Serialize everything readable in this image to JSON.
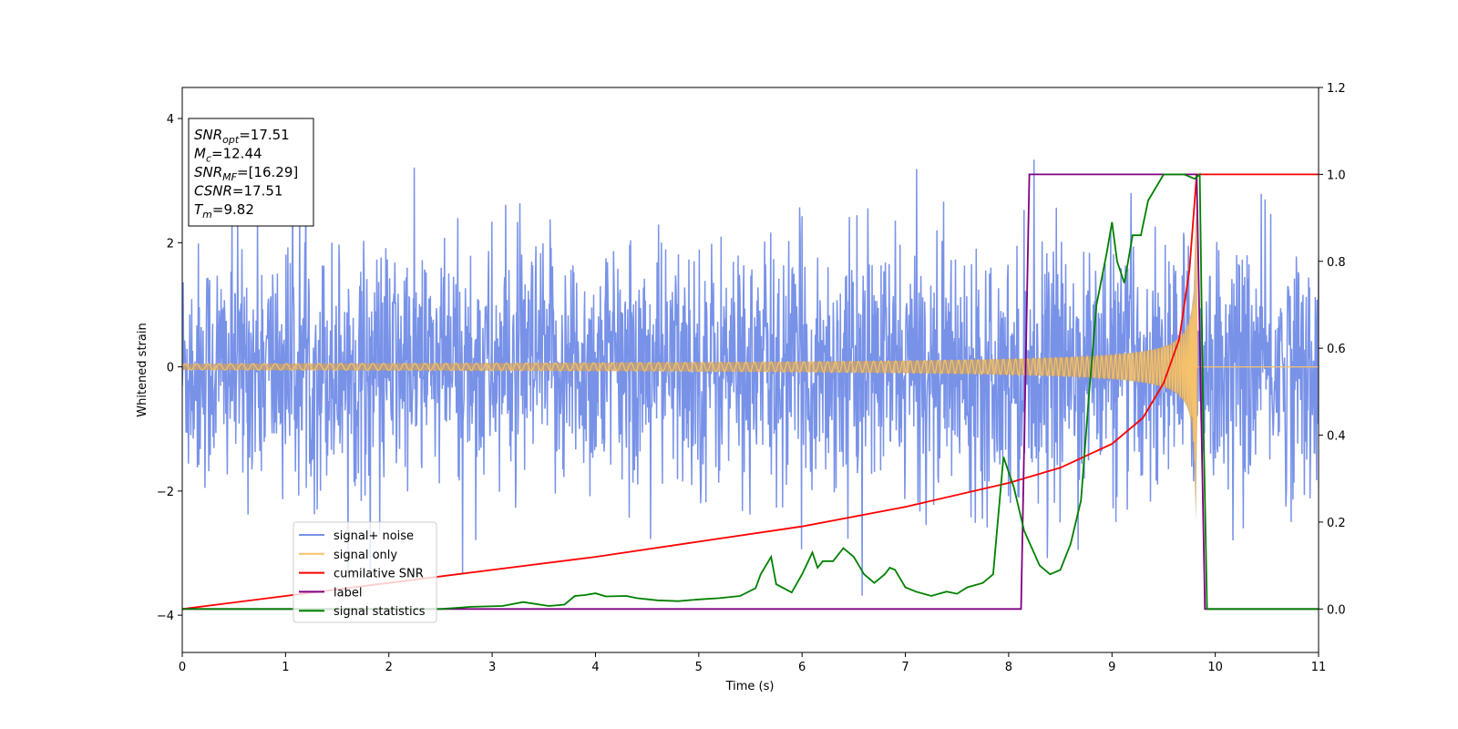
{
  "chart_data": {
    "type": "line",
    "xlabel": "Time (s)",
    "ylabel": "Whitened strain",
    "xlim": [
      0,
      11
    ],
    "ylim": [
      -4.6,
      4.5
    ],
    "y2lim": [
      -0.1,
      1.2
    ],
    "x_ticks": [
      "0",
      "1",
      "2",
      "3",
      "4",
      "5",
      "6",
      "7",
      "8",
      "9",
      "10",
      "11"
    ],
    "y_ticks": [
      "4",
      "2",
      "0",
      "−2",
      "−4"
    ],
    "y2_ticks": [
      "1.2",
      "1.0",
      "0.8",
      "0.6",
      "0.4",
      "0.2",
      "0.0"
    ],
    "info_box": [
      {
        "main": "SNR",
        "sub": "opt",
        "rest": "=17.51"
      },
      {
        "main": "M",
        "sub": "c",
        "rest": "=12.44"
      },
      {
        "main": "SNR",
        "sub": "MF",
        "rest": "=[16.29]"
      },
      {
        "main": "CSNR",
        "sub": "",
        "rest": "=17.51"
      },
      {
        "main": "T",
        "sub": "m",
        "rest": "=9.82"
      }
    ],
    "legend_position": "lower-left",
    "series": [
      {
        "name": "signal+ noise",
        "axis": "left",
        "color": "#7892e8",
        "description_values": "noise ~ N(0,1), range approx [-4.2, 4.1] over t in [0, 11]"
      },
      {
        "name": "signal only",
        "axis": "left",
        "color": "#f5c16a",
        "chirp": {
          "t_merge": 9.82,
          "start_amplitude": 0.05,
          "peak_amplitude": 3.0
        }
      },
      {
        "name": "cumilative SNR",
        "axis": "right",
        "color": "#ff0000",
        "points": [
          [
            0,
            0.0
          ],
          [
            1,
            0.03
          ],
          [
            2,
            0.06
          ],
          [
            3,
            0.09
          ],
          [
            4,
            0.12
          ],
          [
            5,
            0.155
          ],
          [
            6,
            0.19
          ],
          [
            7,
            0.235
          ],
          [
            8,
            0.29
          ],
          [
            8.5,
            0.325
          ],
          [
            9,
            0.38
          ],
          [
            9.3,
            0.44
          ],
          [
            9.5,
            0.52
          ],
          [
            9.65,
            0.62
          ],
          [
            9.75,
            0.78
          ],
          [
            9.82,
            1.0
          ],
          [
            11,
            1.0
          ]
        ]
      },
      {
        "name": "label",
        "axis": "right",
        "color": "#800080",
        "points": [
          [
            0,
            0.0
          ],
          [
            8.12,
            0.0
          ],
          [
            8.2,
            1.0
          ],
          [
            9.82,
            1.0
          ],
          [
            9.9,
            0.0
          ],
          [
            11,
            0.0
          ]
        ]
      },
      {
        "name": "signal statistics",
        "axis": "right",
        "color": "#008000",
        "points": [
          [
            0,
            0.0
          ],
          [
            2.5,
            0.0
          ],
          [
            2.8,
            0.005
          ],
          [
            3.1,
            0.007
          ],
          [
            3.3,
            0.016
          ],
          [
            3.55,
            0.007
          ],
          [
            3.7,
            0.01
          ],
          [
            3.8,
            0.03
          ],
          [
            3.9,
            0.032
          ],
          [
            4.0,
            0.036
          ],
          [
            4.1,
            0.029
          ],
          [
            4.3,
            0.03
          ],
          [
            4.4,
            0.025
          ],
          [
            4.6,
            0.02
          ],
          [
            4.8,
            0.018
          ],
          [
            5.0,
            0.022
          ],
          [
            5.2,
            0.025
          ],
          [
            5.4,
            0.03
          ],
          [
            5.55,
            0.048
          ],
          [
            5.6,
            0.08
          ],
          [
            5.7,
            0.12
          ],
          [
            5.75,
            0.057
          ],
          [
            5.9,
            0.038
          ],
          [
            6.0,
            0.08
          ],
          [
            6.1,
            0.13
          ],
          [
            6.15,
            0.095
          ],
          [
            6.2,
            0.11
          ],
          [
            6.3,
            0.11
          ],
          [
            6.4,
            0.14
          ],
          [
            6.5,
            0.12
          ],
          [
            6.6,
            0.08
          ],
          [
            6.7,
            0.06
          ],
          [
            6.8,
            0.08
          ],
          [
            6.85,
            0.095
          ],
          [
            6.9,
            0.09
          ],
          [
            7.0,
            0.05
          ],
          [
            7.1,
            0.04
          ],
          [
            7.25,
            0.03
          ],
          [
            7.4,
            0.04
          ],
          [
            7.5,
            0.035
          ],
          [
            7.6,
            0.05
          ],
          [
            7.75,
            0.06
          ],
          [
            7.85,
            0.08
          ],
          [
            7.95,
            0.35
          ],
          [
            8.05,
            0.28
          ],
          [
            8.15,
            0.18
          ],
          [
            8.3,
            0.1
          ],
          [
            8.4,
            0.08
          ],
          [
            8.5,
            0.09
          ],
          [
            8.6,
            0.15
          ],
          [
            8.7,
            0.25
          ],
          [
            8.78,
            0.5
          ],
          [
            8.85,
            0.7
          ],
          [
            8.95,
            0.82
          ],
          [
            9.0,
            0.89
          ],
          [
            9.05,
            0.8
          ],
          [
            9.12,
            0.75
          ],
          [
            9.2,
            0.86
          ],
          [
            9.28,
            0.86
          ],
          [
            9.35,
            0.94
          ],
          [
            9.5,
            1.0
          ],
          [
            9.7,
            1.0
          ],
          [
            9.8,
            0.99
          ],
          [
            9.85,
            1.0
          ],
          [
            9.88,
            0.5
          ],
          [
            9.92,
            0.0
          ],
          [
            11,
            0.0
          ]
        ]
      }
    ]
  }
}
